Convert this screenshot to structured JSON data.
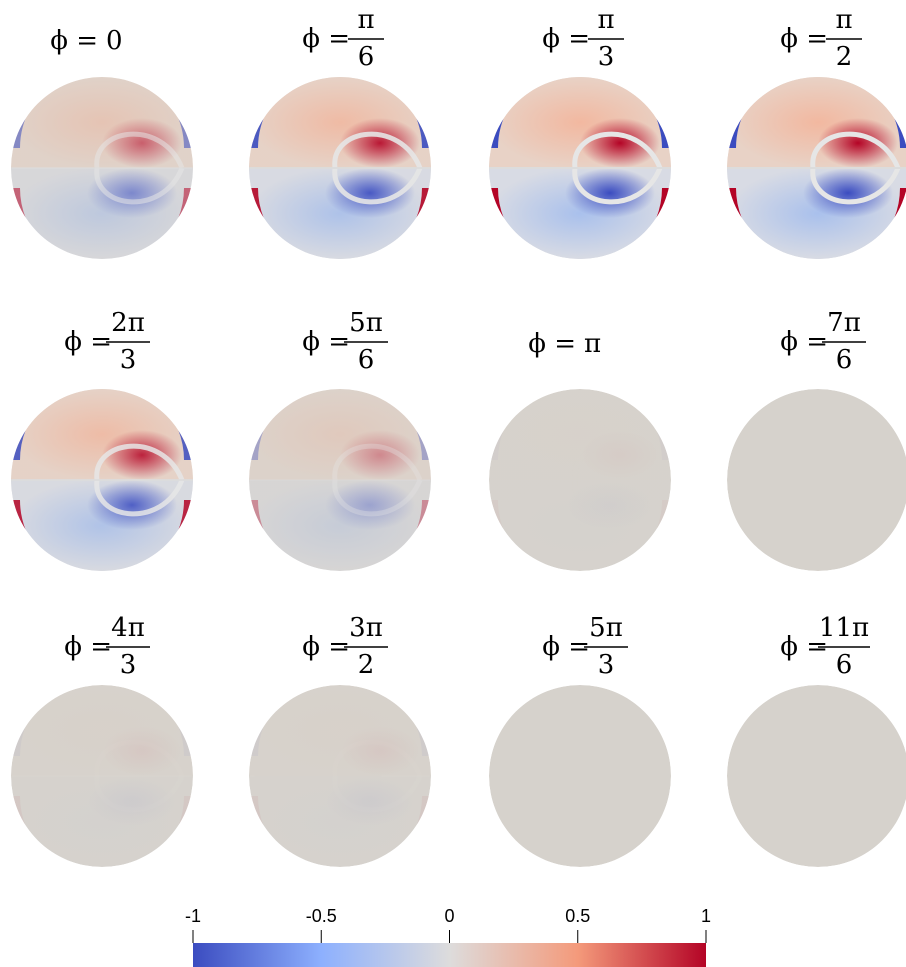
{
  "panels": [
    {
      "prefix": "ϕ =",
      "value": "0"
    },
    {
      "prefix": "ϕ =",
      "numerator": "π",
      "denominator": "6"
    },
    {
      "prefix": "ϕ =",
      "numerator": "π",
      "denominator": "3"
    },
    {
      "prefix": "ϕ =",
      "numerator": "π",
      "denominator": "2"
    },
    {
      "prefix": "ϕ =",
      "numerator": "2π",
      "denominator": "3"
    },
    {
      "prefix": "ϕ =",
      "numerator": "5π",
      "denominator": "6"
    },
    {
      "prefix": "ϕ =",
      "value": "π"
    },
    {
      "prefix": "ϕ =",
      "numerator": "7π",
      "denominator": "6"
    },
    {
      "prefix": "ϕ =",
      "numerator": "4π",
      "denominator": "3"
    },
    {
      "prefix": "ϕ =",
      "numerator": "3π",
      "denominator": "2"
    },
    {
      "prefix": "ϕ =",
      "numerator": "5π",
      "denominator": "3"
    },
    {
      "prefix": "ϕ =",
      "numerator": "11π",
      "denominator": "6"
    }
  ],
  "colorbar": {
    "range": [
      -1,
      1
    ],
    "ticks": [
      -1,
      -0.5,
      0,
      0.5,
      1
    ]
  }
}
